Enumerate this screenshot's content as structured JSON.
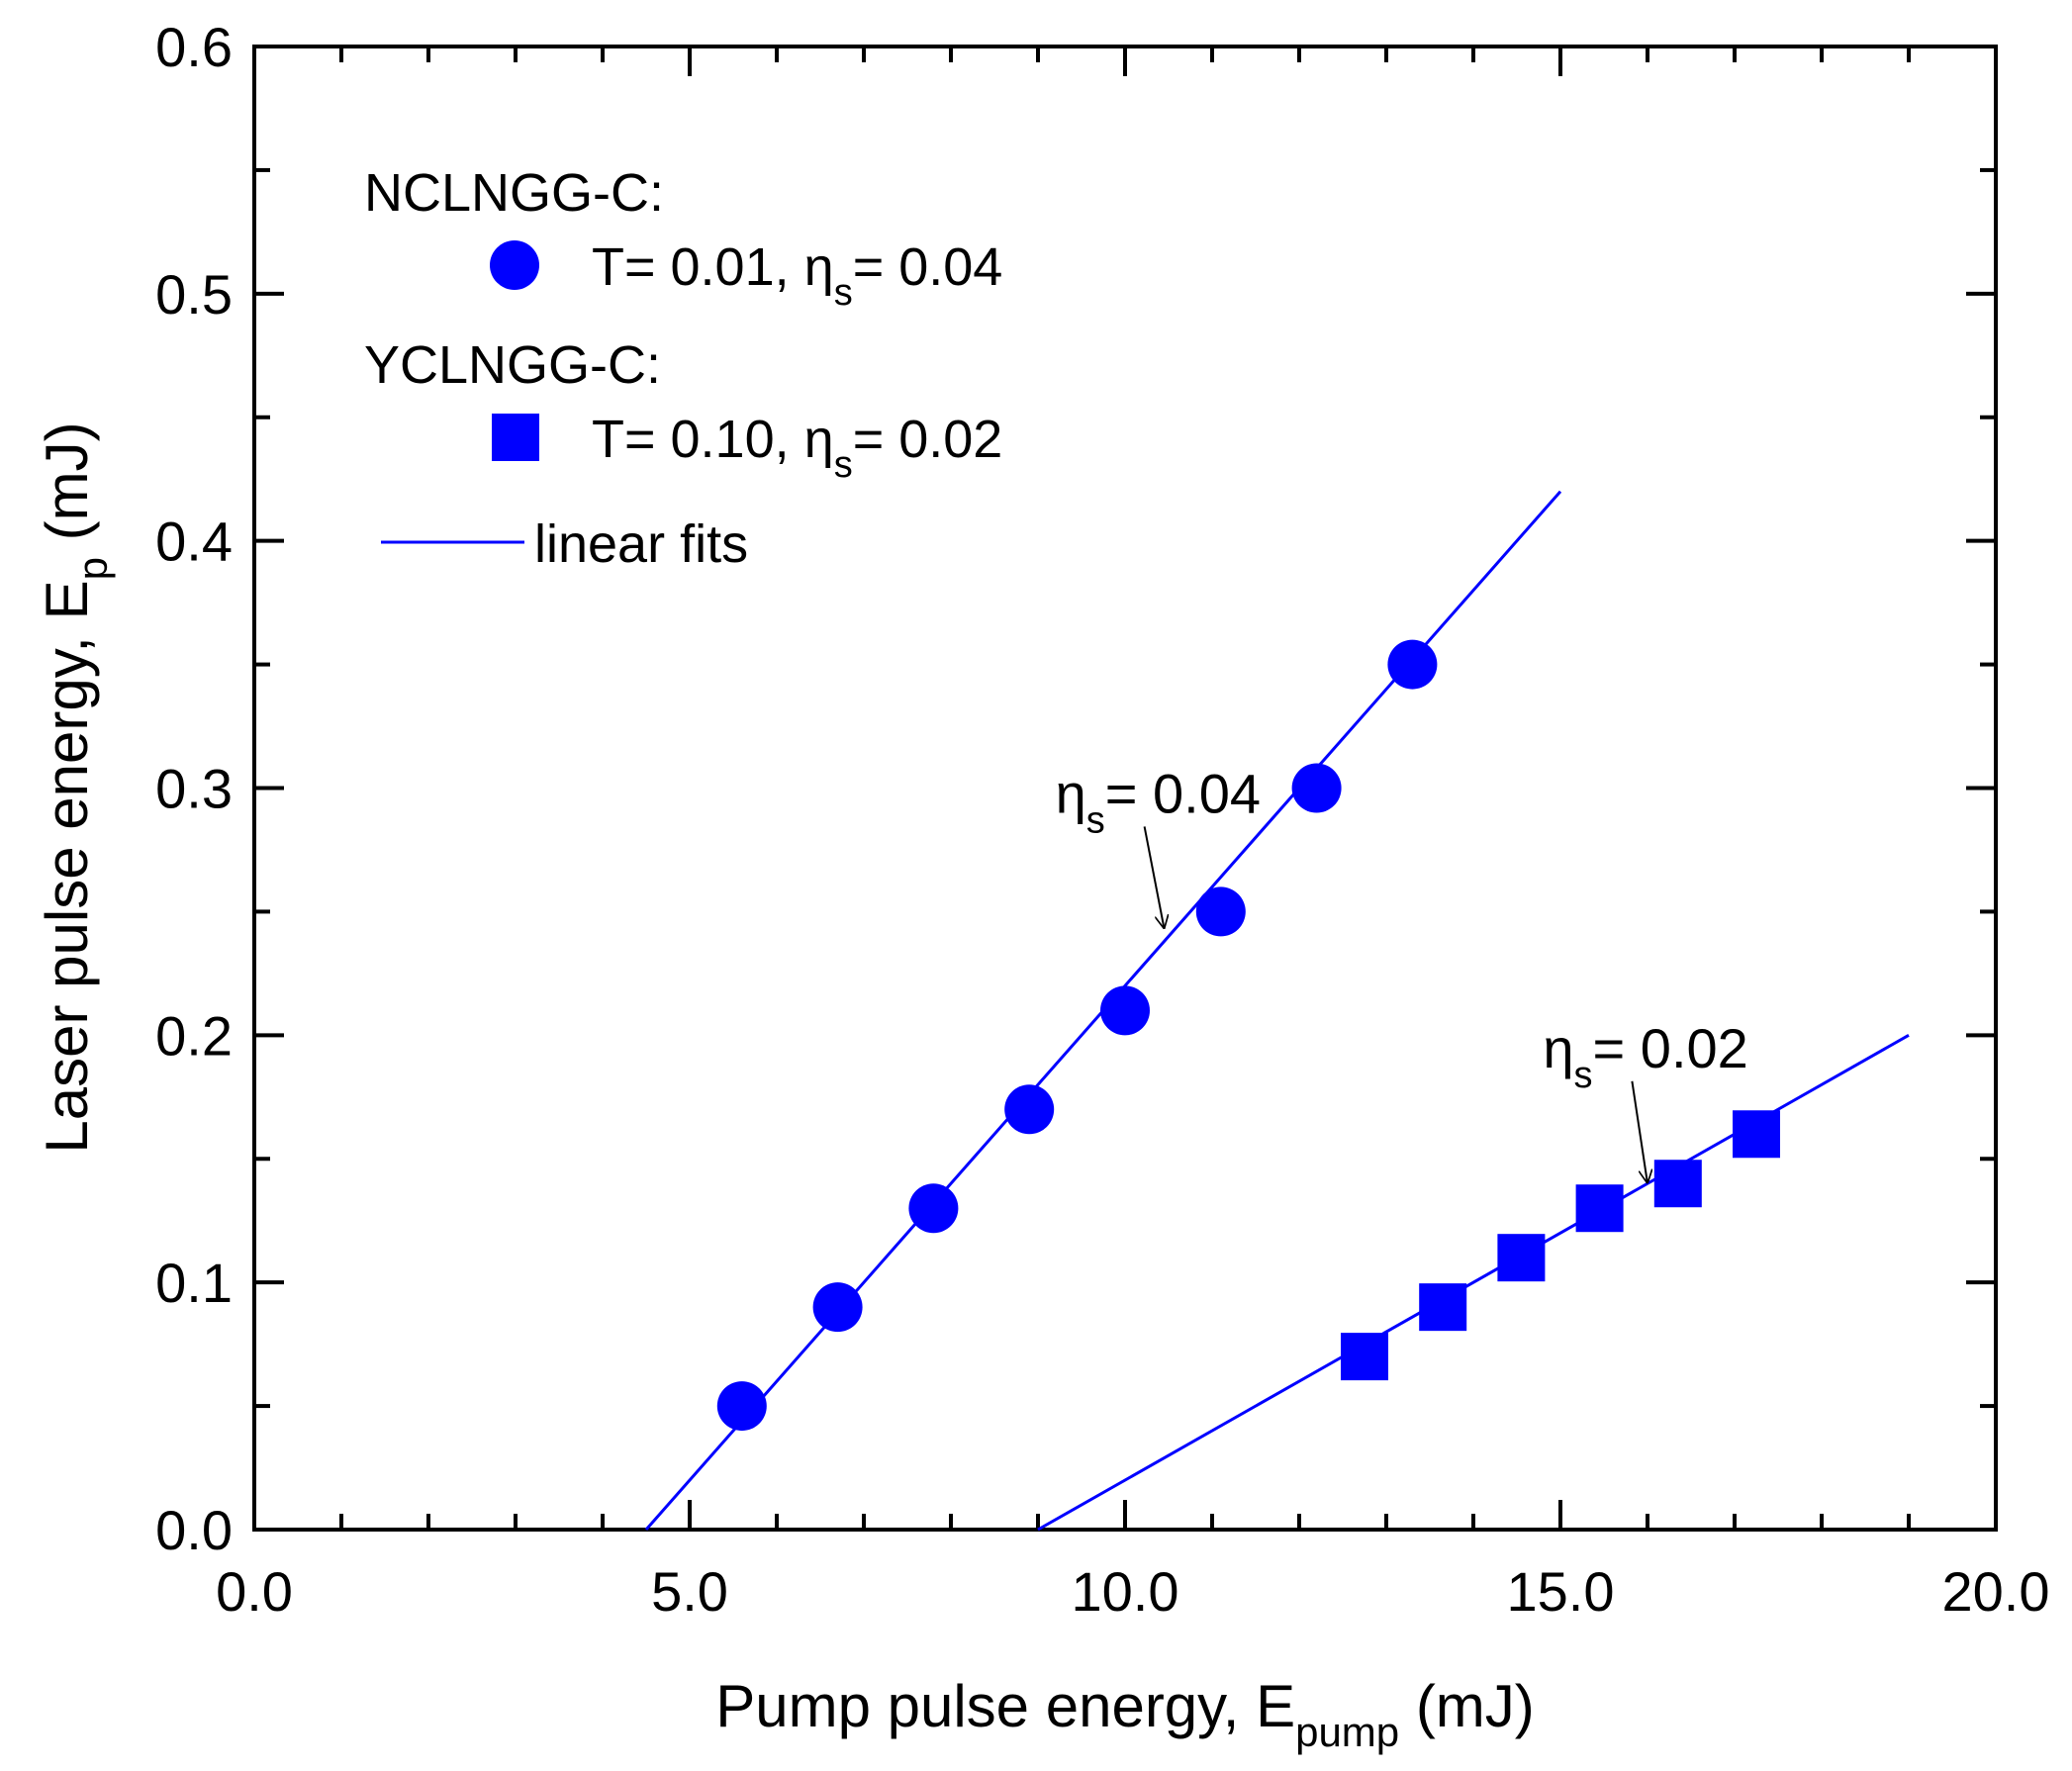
{
  "chart_data": {
    "type": "scatter",
    "xlabel": {
      "main": "Pump pulse energy, E",
      "sub": "pump",
      "unit": " (mJ)"
    },
    "ylabel": {
      "main": "Laser pulse energy, E",
      "sub": "p",
      "unit": " (mJ)"
    },
    "xlim": [
      0,
      20
    ],
    "ylim": [
      0,
      0.6
    ],
    "x_major_ticks": [
      0,
      5,
      10,
      15,
      20
    ],
    "x_tick_labels": [
      "0.0",
      "5.0",
      "10.0",
      "15.0",
      "20.0"
    ],
    "x_minor_step": 1,
    "y_major_ticks": [
      0,
      0.1,
      0.2,
      0.3,
      0.4,
      0.5,
      0.6
    ],
    "y_tick_labels": [
      "0.0",
      "0.1",
      "0.2",
      "0.3",
      "0.4",
      "0.5",
      "0.6"
    ],
    "y_minor_step": 0.05,
    "color": "#0000ff",
    "series": [
      {
        "group_label": "NCLNGG-C:",
        "legend_T": "T= 0.01, ",
        "legend_eta": "η",
        "legend_eta_sub": "s",
        "legend_eta_val": "= 0.04",
        "marker": "circle",
        "x": [
          5.6,
          6.7,
          7.8,
          8.9,
          10.0,
          11.1,
          12.2,
          13.3
        ],
        "y": [
          0.05,
          0.09,
          0.13,
          0.17,
          0.21,
          0.25,
          0.3,
          0.35
        ],
        "fit": {
          "x": [
            4.5,
            15.0
          ],
          "y": [
            0.0,
            0.42
          ]
        },
        "annotation": {
          "eta": "η",
          "sub": "s",
          "text": "= 0.04",
          "x": 9.2,
          "y": 0.29,
          "arrow_to": [
            10.45,
            0.243
          ]
        }
      },
      {
        "group_label": "YCLNGG-C:",
        "legend_T": "T= 0.10, ",
        "legend_eta": "η",
        "legend_eta_sub": "s",
        "legend_eta_val": "= 0.02",
        "marker": "square",
        "x": [
          12.75,
          13.65,
          14.55,
          15.45,
          16.35,
          17.25
        ],
        "y": [
          0.07,
          0.09,
          0.11,
          0.13,
          0.14,
          0.16
        ],
        "fit": {
          "x": [
            9.0,
            19.0
          ],
          "y": [
            0.0,
            0.2
          ]
        },
        "annotation": {
          "eta": "η",
          "sub": "s",
          "text": "= 0.02",
          "x": 14.8,
          "y": 0.187,
          "arrow_to": [
            16.0,
            0.14
          ]
        }
      }
    ],
    "legend_fit_label": "linear fits"
  }
}
